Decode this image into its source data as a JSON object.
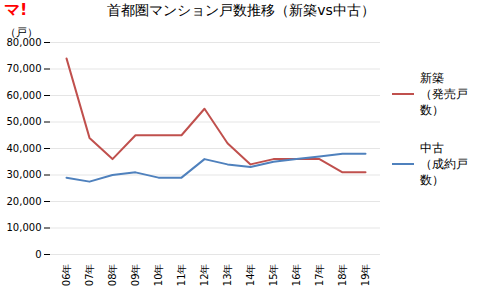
{
  "chart_data": {
    "type": "line",
    "title": "首都圏マンション戸数推移（新築vs中古）",
    "ylabel": "（戸）",
    "categories": [
      "06年",
      "07年",
      "08年",
      "09年",
      "10年",
      "11年",
      "12年",
      "13年",
      "14年",
      "15年",
      "16年",
      "17年",
      "18年",
      "19年"
    ],
    "series": [
      {
        "name": "新築\n（発売戸数）",
        "color": "#c0504d",
        "values": [
          74000,
          44000,
          36000,
          45000,
          45000,
          45000,
          55000,
          42000,
          34000,
          36000,
          36000,
          36000,
          31000,
          31000
        ]
      },
      {
        "name": "中古\n（成約戸数）",
        "color": "#4f81bd",
        "values": [
          29000,
          27500,
          30000,
          31000,
          29000,
          29000,
          36000,
          34000,
          33000,
          35000,
          36000,
          37000,
          38000,
          38000
        ]
      }
    ],
    "ylim": [
      0,
      80000
    ],
    "yticks": [
      0,
      {
        "value": 10000,
        "label": "10,000"
      },
      {
        "value": 20000,
        "label": "20,000"
      },
      {
        "value": 30000,
        "label": "30,000"
      },
      {
        "value": 40000,
        "label": "40,000"
      },
      {
        "value": 50000,
        "label": "50,000"
      },
      {
        "value": 60000,
        "label": "60,000"
      },
      {
        "value": 70000,
        "label": "70,000"
      },
      {
        "value": 80000,
        "label": "80,000"
      }
    ],
    "grid": true,
    "legend": "right",
    "annotations": [
      {
        "text": "マ!",
        "color": "#ff0000"
      }
    ]
  }
}
